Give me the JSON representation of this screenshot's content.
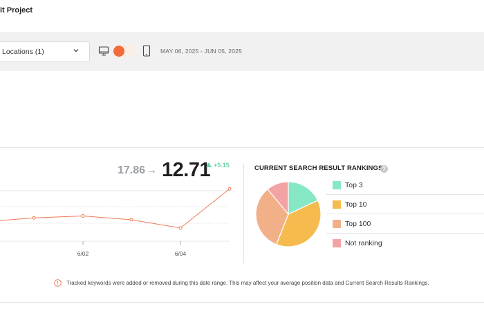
{
  "header": {
    "project_title": "it Project"
  },
  "filters": {
    "locations_label": "Locations (1)",
    "device_toggle": "desktop",
    "date_range": "MAY 06, 2025 - JUN 05, 2025"
  },
  "average_position": {
    "previous": "17.86",
    "arrow": "→",
    "current": "12.71",
    "delta": "+5.15"
  },
  "line_chart": {
    "x_tick_labels": [
      "6/02",
      "6/04"
    ],
    "color": "#ee7a55"
  },
  "rankings": {
    "title": "CURRENT SEARCH RESULT RANKINGS",
    "help": "?",
    "legend": [
      {
        "label": "Top 3",
        "color": "#86e8c4"
      },
      {
        "label": "Top 10",
        "color": "#f5bb4f"
      },
      {
        "label": "Top 100",
        "color": "#f1b088"
      },
      {
        "label": "Not ranking",
        "color": "#f4a3a5"
      }
    ]
  },
  "chart_data": [
    {
      "type": "line",
      "title": "",
      "x": [
        "",
        "",
        "",
        "6/02",
        "",
        "6/04",
        ""
      ],
      "series": [
        {
          "values": [
            17.9,
            17.3,
            17.0,
            17.6,
            18.9,
            14.8,
            12.7
          ]
        }
      ],
      "ylim": [
        13,
        21
      ],
      "grid": true
    },
    {
      "type": "pie",
      "title": "CURRENT SEARCH RESULT RANKINGS",
      "categories": [
        "Top 3",
        "Top 10",
        "Top 100",
        "Not ranking"
      ],
      "values": [
        18,
        38,
        33,
        11
      ]
    }
  ],
  "notice": {
    "icon": "info-circle-icon",
    "text": "Tracked keywords were added or removed during this date range. This may affect your average position data and Current Search Results Rankings."
  }
}
